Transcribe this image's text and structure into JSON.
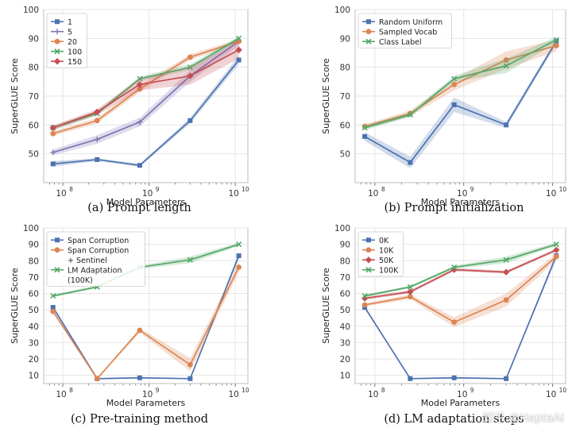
{
  "colors": {
    "blue": "#4c72b0",
    "purple": "#8172b3",
    "orange": "#dd8452",
    "green": "#55a868",
    "red": "#c44e52",
    "grid": "#e5e5e5",
    "axis": "#bdbdbd"
  },
  "watermark": "知乎 @HeptaAI",
  "chart_data": [
    {
      "type": "line",
      "caption": "(a) Prompt length",
      "xlabel": "Model Parameters",
      "ylabel": "SuperGLUE Score",
      "xscale": "log",
      "xlim": [
        60000000,
        14000000000
      ],
      "xticks": [
        100000000,
        1000000000,
        10000000000
      ],
      "xtick_labels": [
        "10",
        "10",
        "10"
      ],
      "xtick_exps": [
        "8",
        "9",
        "10"
      ],
      "ylim": [
        40,
        100
      ],
      "yticks": [
        50,
        60,
        70,
        80,
        90,
        100
      ],
      "ytick_labels": [
        "50",
        "60",
        "70",
        "80",
        "90",
        "100"
      ],
      "grid": true,
      "legend": "top-left",
      "x": [
        77000000,
        250000000,
        780000000,
        3000000000,
        11000000000
      ],
      "series": [
        {
          "name": "1",
          "color": "blue",
          "marker": "square",
          "values": [
            46.5,
            48,
            46,
            61.5,
            82.5
          ],
          "band": [
            1,
            0.5,
            0.5,
            1,
            1.5
          ]
        },
        {
          "name": "5",
          "color": "purple",
          "marker": "plus",
          "values": [
            50.5,
            55,
            61,
            77,
            89
          ],
          "band": [
            1,
            1.5,
            1.5,
            2,
            1.5
          ]
        },
        {
          "name": "20",
          "color": "orange",
          "marker": "circle",
          "values": [
            57,
            61.5,
            72.5,
            83.5,
            89
          ],
          "band": [
            0.8,
            1,
            1.2,
            1,
            0.8
          ]
        },
        {
          "name": "100",
          "color": "green",
          "marker": "x",
          "values": [
            59,
            64,
            76,
            80,
            90
          ],
          "band": [
            0.8,
            0.8,
            0.8,
            1,
            0.7
          ]
        },
        {
          "name": "150",
          "color": "red",
          "marker": "diamond",
          "values": [
            59,
            64.5,
            74,
            77,
            86
          ],
          "band": [
            0.8,
            1,
            2,
            3,
            3
          ]
        }
      ]
    },
    {
      "type": "line",
      "caption": "(b) Prompt initialization",
      "xlabel": "Model Parameters",
      "ylabel": "SuperGLUE Score",
      "xscale": "log",
      "xlim": [
        60000000,
        14000000000
      ],
      "xticks": [
        100000000,
        1000000000,
        10000000000
      ],
      "xtick_labels": [
        "10",
        "10",
        "10"
      ],
      "xtick_exps": [
        "8",
        "9",
        "10"
      ],
      "ylim": [
        40,
        100
      ],
      "yticks": [
        50,
        60,
        70,
        80,
        90,
        100
      ],
      "ytick_labels": [
        "50",
        "60",
        "70",
        "80",
        "90",
        "100"
      ],
      "grid": true,
      "legend": "top-left",
      "x": [
        77000000,
        250000000,
        780000000,
        3000000000,
        11000000000
      ],
      "series": [
        {
          "name": "Random Uniform",
          "color": "blue",
          "marker": "square",
          "values": [
            56,
            47,
            67,
            60,
            89
          ],
          "band": [
            1.5,
            2,
            2.5,
            1,
            1
          ]
        },
        {
          "name": "Sampled Vocab",
          "color": "orange",
          "marker": "circle",
          "values": [
            59.5,
            64,
            74,
            82.5,
            87.5
          ],
          "band": [
            0.8,
            1,
            2,
            3,
            2
          ]
        },
        {
          "name": "Class Label",
          "color": "green",
          "marker": "x",
          "values": [
            59,
            63.5,
            76,
            80.5,
            89.5
          ],
          "band": [
            0.8,
            0.8,
            1,
            2.5,
            1
          ]
        }
      ]
    },
    {
      "type": "line",
      "caption": "(c) Pre-training method",
      "xlabel": "Model Parameters",
      "ylabel": "SuperGLUE Score",
      "xscale": "log",
      "xlim": [
        60000000,
        14000000000
      ],
      "xticks": [
        100000000,
        1000000000,
        10000000000
      ],
      "xtick_labels": [
        "10",
        "10",
        "10"
      ],
      "xtick_exps": [
        "8",
        "9",
        "10"
      ],
      "ylim": [
        5,
        100
      ],
      "yticks": [
        10,
        20,
        30,
        40,
        50,
        60,
        70,
        80,
        90,
        100
      ],
      "ytick_labels": [
        "10",
        "20",
        "30",
        "40",
        "50",
        "60",
        "70",
        "80",
        "90",
        "100"
      ],
      "grid": true,
      "legend": "top-left",
      "x": [
        77000000,
        250000000,
        780000000,
        3000000000,
        11000000000
      ],
      "series": [
        {
          "name": "Span Corruption",
          "color": "blue",
          "marker": "square",
          "values": [
            51.5,
            8,
            8.5,
            8,
            83
          ],
          "band": [
            1,
            0.3,
            0.3,
            0.3,
            2
          ]
        },
        {
          "name": "Span Corruption\n+ Sentinel",
          "color": "orange",
          "marker": "circle",
          "values": [
            49,
            8,
            37.5,
            16.5,
            76
          ],
          "band": [
            1,
            0.3,
            1.5,
            4,
            3
          ]
        },
        {
          "name": "LM Adaptation\n(100K)",
          "color": "green",
          "marker": "x",
          "values": [
            58.5,
            64,
            76,
            80.5,
            90
          ],
          "band": [
            0.8,
            0.8,
            1,
            2,
            1
          ]
        }
      ]
    },
    {
      "type": "line",
      "caption": "(d) LM adaptation steps",
      "xlabel": "Model Parameters",
      "ylabel": "SuperGLUE Score",
      "xscale": "log",
      "xlim": [
        60000000,
        14000000000
      ],
      "xticks": [
        100000000,
        1000000000,
        10000000000
      ],
      "xtick_labels": [
        "10",
        "10",
        "10"
      ],
      "xtick_exps": [
        "8",
        "9",
        "10"
      ],
      "ylim": [
        5,
        100
      ],
      "yticks": [
        10,
        20,
        30,
        40,
        50,
        60,
        70,
        80,
        90,
        100
      ],
      "ytick_labels": [
        "10",
        "20",
        "30",
        "40",
        "50",
        "60",
        "70",
        "80",
        "90",
        "100"
      ],
      "grid": true,
      "legend": "top-left",
      "x": [
        77000000,
        250000000,
        780000000,
        3000000000,
        11000000000
      ],
      "series": [
        {
          "name": "0K",
          "color": "blue",
          "marker": "square",
          "values": [
            51.5,
            8,
            8.5,
            8,
            83
          ],
          "band": [
            1,
            0.3,
            0.3,
            0.3,
            2
          ]
        },
        {
          "name": "10K",
          "color": "orange",
          "marker": "circle",
          "values": [
            53,
            58,
            42.5,
            56,
            82.5
          ],
          "band": [
            1,
            1.5,
            3,
            4,
            2
          ]
        },
        {
          "name": "50K",
          "color": "red",
          "marker": "diamond",
          "values": [
            57,
            61,
            74.5,
            73,
            86.5
          ],
          "band": [
            1,
            1,
            1,
            1,
            1
          ]
        },
        {
          "name": "100K",
          "color": "green",
          "marker": "x",
          "values": [
            58.5,
            64,
            76,
            80.5,
            90
          ],
          "band": [
            0.8,
            0.8,
            1,
            2,
            1
          ]
        }
      ]
    }
  ]
}
